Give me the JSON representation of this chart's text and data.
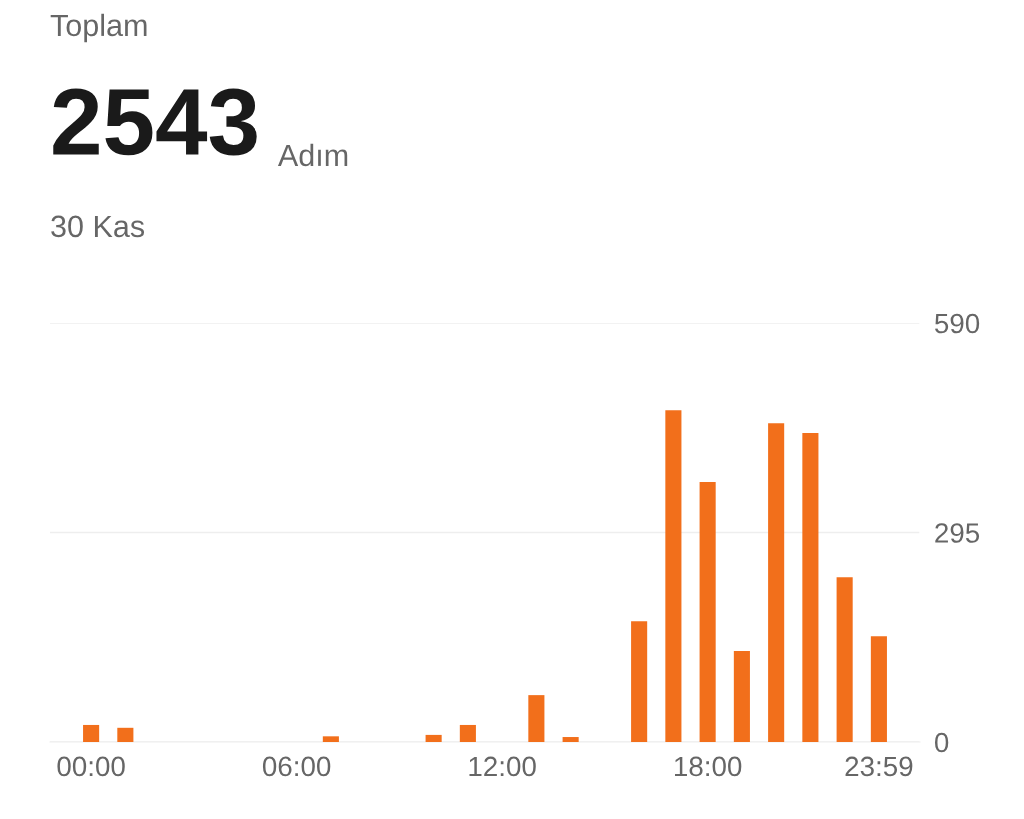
{
  "chart_data": {
    "type": "bar",
    "title": "Toplam",
    "subtitle": "30 Kas",
    "annotations": [
      "2543",
      "Adım"
    ],
    "categories": [
      "00:00",
      null,
      null,
      null,
      null,
      null,
      "06:00",
      null,
      null,
      null,
      null,
      null,
      "12:00",
      null,
      null,
      null,
      null,
      null,
      "18:00",
      null,
      null,
      null,
      null,
      "23:59"
    ],
    "values": [
      24,
      20,
      0,
      0,
      0,
      0,
      0,
      8,
      0,
      0,
      10,
      24,
      0,
      66,
      7,
      0,
      170,
      467,
      366,
      128,
      449,
      435,
      232,
      149
    ],
    "color": "#f26f1b",
    "ylim": [
      0,
      590
    ],
    "yticks": [
      0,
      295,
      590
    ],
    "grid": "y",
    "legend": false
  }
}
